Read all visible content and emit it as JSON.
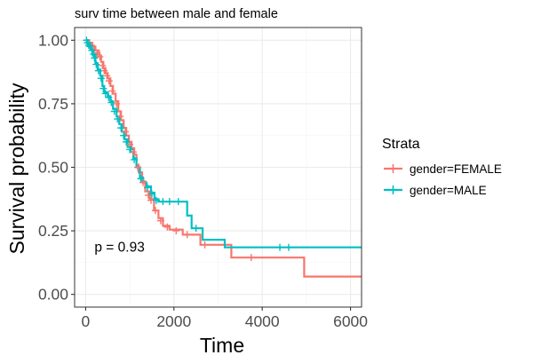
{
  "chart_data": {
    "type": "line",
    "subtype": "kaplan-meier survival",
    "title": "surv time between male and female",
    "xlabel": "Time",
    "ylabel": "Survival probability",
    "xlim": [
      -250,
      6250
    ],
    "ylim": [
      -0.05,
      1.05
    ],
    "x_ticks": [
      0,
      2000,
      4000,
      6000
    ],
    "x_tick_labels": [
      "0",
      "2000",
      "4000",
      "6000"
    ],
    "y_ticks": [
      0.0,
      0.25,
      0.5,
      0.75,
      1.0
    ],
    "y_tick_labels": [
      "0.00",
      "0.25",
      "0.50",
      "0.75",
      "1.00"
    ],
    "grid": true,
    "legend": {
      "title": "Strata",
      "placement": "right"
    },
    "annotation": "p = 0.93",
    "annotation_at": [
      200,
      0.19
    ],
    "series": [
      {
        "name": "gender=FEMALE",
        "color": "#F8766D",
        "steps": [
          [
            0,
            1.0
          ],
          [
            80,
            0.99
          ],
          [
            150,
            0.975
          ],
          [
            220,
            0.96
          ],
          [
            300,
            0.94
          ],
          [
            350,
            0.915
          ],
          [
            400,
            0.89
          ],
          [
            450,
            0.87
          ],
          [
            500,
            0.85
          ],
          [
            560,
            0.82
          ],
          [
            620,
            0.79
          ],
          [
            680,
            0.76
          ],
          [
            740,
            0.72
          ],
          [
            800,
            0.685
          ],
          [
            860,
            0.655
          ],
          [
            920,
            0.625
          ],
          [
            980,
            0.6
          ],
          [
            1040,
            0.575
          ],
          [
            1100,
            0.55
          ],
          [
            1150,
            0.51
          ],
          [
            1200,
            0.48
          ],
          [
            1280,
            0.445
          ],
          [
            1350,
            0.405
          ],
          [
            1450,
            0.375
          ],
          [
            1550,
            0.33
          ],
          [
            1650,
            0.3
          ],
          [
            1750,
            0.27
          ],
          [
            1900,
            0.255
          ],
          [
            2200,
            0.235
          ],
          [
            2600,
            0.195
          ],
          [
            3300,
            0.145
          ],
          [
            4950,
            0.07
          ],
          [
            6250,
            0.07
          ]
        ],
        "censors": [
          [
            60,
            0.99
          ],
          [
            130,
            0.98
          ],
          [
            190,
            0.96
          ],
          [
            260,
            0.95
          ],
          [
            320,
            0.935
          ],
          [
            380,
            0.9
          ],
          [
            420,
            0.88
          ],
          [
            480,
            0.86
          ],
          [
            530,
            0.84
          ],
          [
            600,
            0.8
          ],
          [
            700,
            0.75
          ],
          [
            780,
            0.7
          ],
          [
            900,
            0.64
          ],
          [
            1000,
            0.59
          ],
          [
            1080,
            0.56
          ],
          [
            1180,
            0.5
          ],
          [
            1300,
            0.44
          ],
          [
            1420,
            0.39
          ],
          [
            1480,
            0.37
          ],
          [
            1580,
            0.33
          ],
          [
            1700,
            0.29
          ],
          [
            1850,
            0.265
          ],
          [
            2050,
            0.25
          ],
          [
            2300,
            0.235
          ],
          [
            2700,
            0.195
          ],
          [
            3750,
            0.145
          ]
        ]
      },
      {
        "name": "gender=MALE",
        "color": "#00BFC4",
        "steps": [
          [
            0,
            1.0
          ],
          [
            50,
            0.985
          ],
          [
            110,
            0.965
          ],
          [
            160,
            0.94
          ],
          [
            220,
            0.91
          ],
          [
            270,
            0.885
          ],
          [
            330,
            0.86
          ],
          [
            380,
            0.82
          ],
          [
            420,
            0.795
          ],
          [
            500,
            0.78
          ],
          [
            560,
            0.76
          ],
          [
            620,
            0.73
          ],
          [
            700,
            0.7
          ],
          [
            760,
            0.67
          ],
          [
            820,
            0.64
          ],
          [
            880,
            0.61
          ],
          [
            950,
            0.58
          ],
          [
            1020,
            0.56
          ],
          [
            1080,
            0.535
          ],
          [
            1150,
            0.5
          ],
          [
            1230,
            0.46
          ],
          [
            1300,
            0.44
          ],
          [
            1380,
            0.425
          ],
          [
            1480,
            0.4
          ],
          [
            1560,
            0.375
          ],
          [
            1650,
            0.365
          ],
          [
            2300,
            0.31
          ],
          [
            2400,
            0.26
          ],
          [
            2650,
            0.215
          ],
          [
            3150,
            0.185
          ],
          [
            6250,
            0.185
          ]
        ],
        "censors": [
          [
            20,
            1.0
          ],
          [
            40,
            0.99
          ],
          [
            70,
            0.98
          ],
          [
            100,
            0.975
          ],
          [
            140,
            0.96
          ],
          [
            180,
            0.945
          ],
          [
            200,
            0.93
          ],
          [
            240,
            0.905
          ],
          [
            290,
            0.88
          ],
          [
            350,
            0.85
          ],
          [
            400,
            0.81
          ],
          [
            450,
            0.79
          ],
          [
            520,
            0.775
          ],
          [
            580,
            0.755
          ],
          [
            650,
            0.72
          ],
          [
            720,
            0.69
          ],
          [
            800,
            0.655
          ],
          [
            860,
            0.625
          ],
          [
            920,
            0.6
          ],
          [
            1000,
            0.57
          ],
          [
            1100,
            0.53
          ],
          [
            1250,
            0.455
          ],
          [
            1400,
            0.42
          ],
          [
            1500,
            0.395
          ],
          [
            1600,
            0.37
          ],
          [
            1750,
            0.365
          ],
          [
            1900,
            0.365
          ],
          [
            2100,
            0.365
          ],
          [
            2500,
            0.26
          ],
          [
            4400,
            0.185
          ],
          [
            4600,
            0.185
          ]
        ]
      }
    ]
  }
}
